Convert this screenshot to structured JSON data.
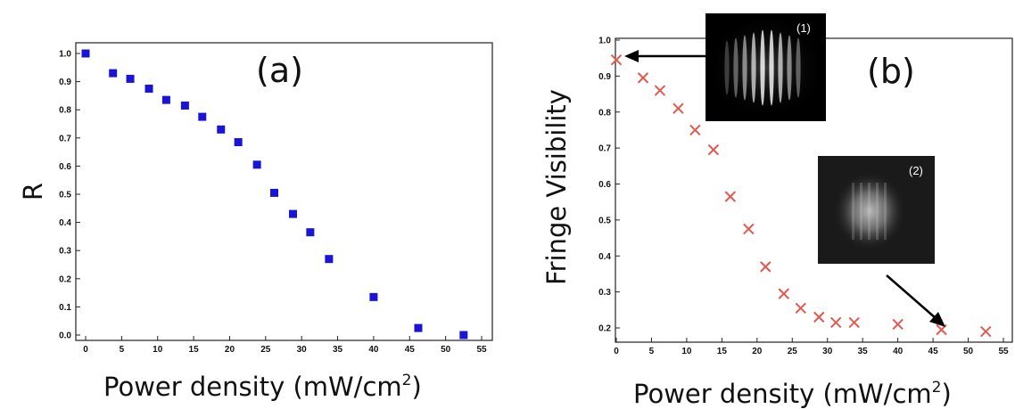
{
  "chart_data": [
    {
      "type": "scatter",
      "panel_label": "(a)",
      "xlabel": "Power density (mW/cm",
      "xlabel_sup": "2",
      "xlabel_close": ")",
      "ylabel": "R",
      "xlim": [
        0,
        55
      ],
      "ylim": [
        -0.03,
        1.05
      ],
      "xticks": [
        "0",
        "5",
        "10",
        "15",
        "20",
        "25",
        "30",
        "35",
        "40",
        "45",
        "50",
        "55"
      ],
      "yticks": [
        "0.0",
        "0.1",
        "0.2",
        "0.3",
        "0.4",
        "0.5",
        "0.6",
        "0.7",
        "0.8",
        "0.9",
        "1.0"
      ],
      "marker": "square",
      "marker_color": "#1a14d6",
      "x": [
        0,
        3.8,
        6.2,
        8.8,
        11.2,
        13.8,
        16.2,
        18.8,
        21.2,
        23.8,
        26.2,
        28.8,
        31.2,
        33.8,
        40,
        46.2,
        52.5
      ],
      "y": [
        1.0,
        0.93,
        0.91,
        0.875,
        0.835,
        0.815,
        0.775,
        0.73,
        0.685,
        0.605,
        0.505,
        0.43,
        0.365,
        0.27,
        0.135,
        0.025,
        0.0
      ]
    },
    {
      "type": "scatter",
      "panel_label": "(b)",
      "xlabel": "Power density (mW/cm",
      "xlabel_sup": "2",
      "xlabel_close": ")",
      "ylabel": "Fringe Visibility",
      "xlim": [
        0,
        55
      ],
      "ylim": [
        0.17,
        1.0
      ],
      "xticks": [
        "0",
        "5",
        "10",
        "15",
        "20",
        "25",
        "30",
        "35",
        "40",
        "45",
        "50",
        "55"
      ],
      "yticks": [
        "0.2",
        "0.3",
        "0.4",
        "0.5",
        "0.6",
        "0.7",
        "0.8",
        "0.9",
        "1.0"
      ],
      "marker": "x",
      "marker_color": "#e05a50",
      "x": [
        0,
        3.8,
        6.2,
        8.8,
        11.2,
        13.8,
        16.2,
        18.8,
        21.2,
        23.8,
        26.2,
        28.8,
        31.2,
        33.8,
        40,
        46.2,
        52.5
      ],
      "y": [
        0.945,
        0.895,
        0.86,
        0.81,
        0.75,
        0.695,
        0.565,
        0.475,
        0.37,
        0.295,
        0.255,
        0.23,
        0.215,
        0.215,
        0.21,
        0.195,
        0.19
      ],
      "insets": [
        {
          "label": "(1)",
          "type": "fringes-strong",
          "points_to": {
            "x": 0,
            "y": 0.945
          }
        },
        {
          "label": "(2)",
          "type": "fringes-weak",
          "points_to": {
            "x": 46.2,
            "y": 0.195
          }
        }
      ]
    }
  ]
}
